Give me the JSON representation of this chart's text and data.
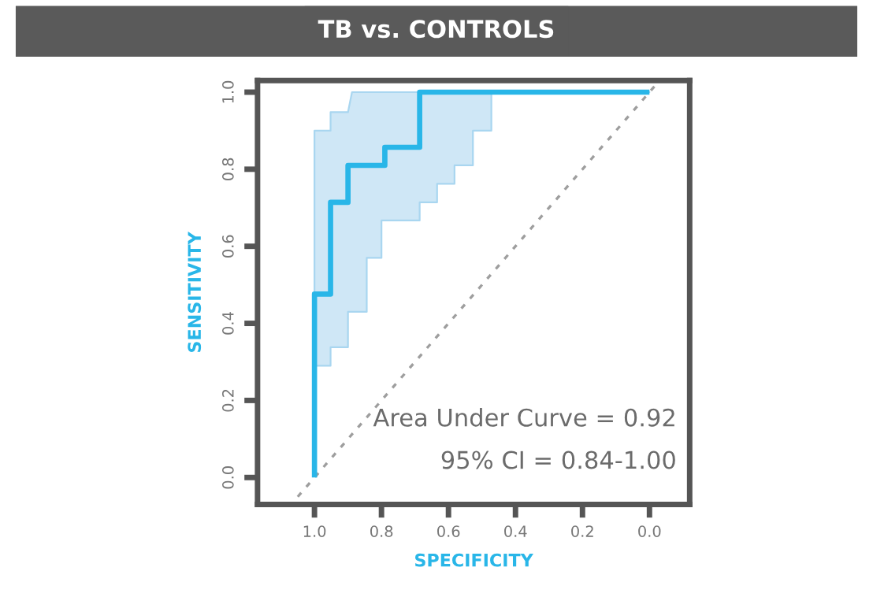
{
  "chart_data": {
    "type": "line",
    "title": "TB vs. CONTROLS",
    "xlabel": "SPECIFICITY",
    "ylabel": "SENSITIVITY",
    "xlim": [
      1.17,
      -0.12
    ],
    "ylim": [
      -0.07,
      1.03
    ],
    "xticks": [
      {
        "value": 1.0,
        "label": "1.0"
      },
      0.8,
      0.6,
      0.4,
      0.2,
      {
        "value": 0.0,
        "label": "0.0"
      }
    ],
    "yticks": [
      {
        "value": 0.0,
        "label": "0.0"
      },
      0.2,
      0.4,
      0.6,
      0.8,
      {
        "value": 1.0,
        "label": "1.0"
      }
    ],
    "grid": false,
    "legend": false,
    "series": [
      {
        "color": "#9e9e9e",
        "line_style": "dotted",
        "x": [
          1.05,
          -0.03
        ],
        "values": [
          -0.05,
          1.03
        ]
      },
      {
        "color": "#29b6e8",
        "line_style": "solid",
        "x": [
          1.0,
          1.0,
          0.952,
          0.952,
          0.9,
          0.9,
          0.888,
          0.844,
          0.844,
          0.8,
          0.8,
          0.79,
          0.79,
          0.686,
          0.686,
          0.634,
          0.634,
          0.582,
          0.582,
          0.527,
          0.527,
          0.472,
          0.472,
          0.0
        ],
        "values": [
          0.0,
          0.476,
          0.476,
          0.714,
          0.714,
          0.81,
          0.81,
          0.81,
          0.81,
          0.81,
          0.81,
          0.81,
          0.857,
          0.857,
          1.0,
          1.0,
          1.0,
          1.0,
          1.0,
          1.0,
          1.0,
          1.0,
          1.0,
          1.0
        ],
        "lower": [
          0.29,
          0.29,
          0.29,
          0.338,
          0.338,
          0.43,
          0.43,
          0.43,
          0.57,
          0.57,
          0.667,
          0.667,
          0.667,
          0.667,
          0.714,
          0.714,
          0.762,
          0.762,
          0.81,
          0.81,
          0.9,
          0.9,
          1.0,
          1.0
        ],
        "upper": [
          0.9,
          0.9,
          0.9,
          0.948,
          0.948,
          0.948,
          1.0,
          1.0,
          1.0,
          1.0,
          1.0,
          1.0,
          1.0,
          1.0,
          1.0,
          1.0,
          1.0,
          1.0,
          1.0,
          1.0,
          1.0,
          1.0,
          1.0,
          1.0
        ]
      }
    ],
    "annotations": [
      "Area Under Curve = 0.92",
      "95% CI = 0.84-1.00"
    ]
  }
}
